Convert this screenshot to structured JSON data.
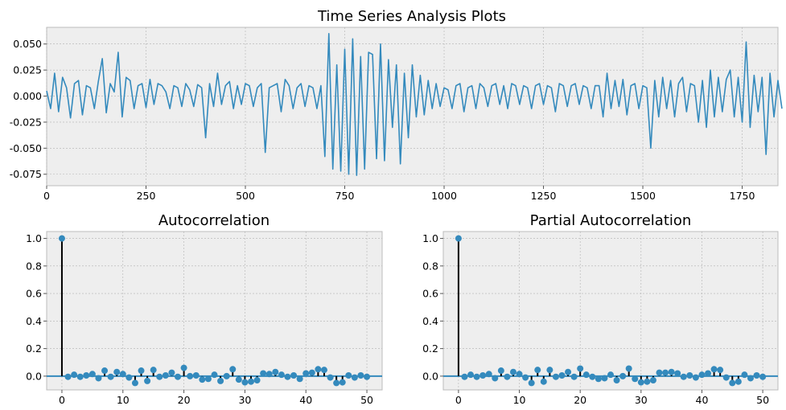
{
  "chart_data": [
    {
      "type": "line",
      "title": "Time Series Analysis Plots",
      "xlim": [
        0,
        1840
      ],
      "ylim": [
        -0.086,
        0.066
      ],
      "x_ticks": [
        0,
        250,
        500,
        750,
        1000,
        1250,
        1500,
        1750
      ],
      "y_ticks": [
        -0.075,
        -0.05,
        -0.025,
        0.0,
        0.025,
        0.05
      ],
      "x_tick_labels": [
        "0",
        "250",
        "500",
        "750",
        "1000",
        "1250",
        "1500",
        "1750"
      ],
      "y_tick_labels": [
        "-0.075",
        "-0.050",
        "-0.025",
        "0.000",
        "0.025",
        "0.050"
      ],
      "grid": true,
      "series": [
        {
          "color": "#348ABD",
          "x_step": 10,
          "values": [
            0.005,
            -0.012,
            0.022,
            -0.015,
            0.018,
            0.008,
            -0.021,
            0.012,
            0.015,
            -0.018,
            0.01,
            0.008,
            -0.012,
            0.014,
            0.036,
            -0.016,
            0.012,
            0.004,
            0.042,
            -0.02,
            0.018,
            0.015,
            -0.012,
            0.01,
            0.012,
            -0.011,
            0.016,
            -0.008,
            0.012,
            0.01,
            0.004,
            -0.012,
            0.01,
            0.008,
            -0.01,
            0.012,
            0.006,
            -0.01,
            0.011,
            0.008,
            -0.04,
            0.012,
            -0.01,
            0.022,
            -0.008,
            0.01,
            0.014,
            -0.012,
            0.01,
            -0.008,
            0.012,
            0.01,
            -0.01,
            0.008,
            0.012,
            -0.054,
            0.008,
            0.01,
            0.012,
            -0.015,
            0.016,
            0.01,
            -0.012,
            0.008,
            0.012,
            -0.01,
            0.01,
            0.008,
            -0.012,
            0.01,
            -0.058,
            0.06,
            -0.07,
            0.03,
            -0.072,
            0.045,
            -0.075,
            0.055,
            -0.076,
            0.038,
            -0.07,
            0.042,
            0.04,
            -0.06,
            0.05,
            -0.062,
            0.035,
            -0.03,
            0.03,
            -0.065,
            0.022,
            -0.04,
            0.03,
            -0.02,
            0.02,
            -0.018,
            0.015,
            -0.012,
            0.012,
            -0.01,
            0.008,
            0.006,
            -0.012,
            0.01,
            0.012,
            -0.015,
            0.008,
            0.01,
            -0.012,
            0.012,
            0.008,
            -0.01,
            0.01,
            0.012,
            -0.008,
            0.01,
            -0.012,
            0.012,
            0.01,
            -0.008,
            0.01,
            0.008,
            -0.012,
            0.01,
            0.012,
            -0.008,
            0.01,
            0.008,
            -0.015,
            0.012,
            0.01,
            -0.01,
            0.01,
            0.012,
            -0.008,
            0.01,
            0.008,
            -0.012,
            0.01,
            0.01,
            -0.02,
            0.022,
            -0.012,
            0.015,
            -0.01,
            0.016,
            -0.018,
            0.01,
            0.012,
            -0.012,
            0.01,
            0.008,
            -0.05,
            0.015,
            -0.02,
            0.018,
            -0.012,
            0.015,
            -0.02,
            0.012,
            0.018,
            -0.015,
            0.012,
            0.01,
            -0.025,
            0.015,
            -0.03,
            0.025,
            -0.02,
            0.018,
            -0.015,
            0.016,
            0.025,
            -0.02,
            0.018,
            -0.025,
            0.052,
            -0.03,
            0.02,
            -0.015,
            0.018,
            -0.056,
            0.022,
            -0.02,
            0.015,
            -0.012
          ]
        }
      ]
    },
    {
      "type": "stem",
      "title": "Autocorrelation",
      "xlim": [
        -2.5,
        52.5
      ],
      "ylim": [
        -0.1,
        1.05
      ],
      "x_ticks": [
        0,
        10,
        20,
        30,
        40,
        50
      ],
      "y_ticks": [
        0.0,
        0.2,
        0.4,
        0.6,
        0.8,
        1.0
      ],
      "x_tick_labels": [
        "0",
        "10",
        "20",
        "30",
        "40",
        "50"
      ],
      "y_tick_labels": [
        "0.0",
        "0.2",
        "0.4",
        "0.6",
        "0.8",
        "1.0"
      ],
      "grid": true,
      "x": [
        0,
        1,
        2,
        3,
        4,
        5,
        6,
        7,
        8,
        9,
        10,
        11,
        12,
        13,
        14,
        15,
        16,
        17,
        18,
        19,
        20,
        21,
        22,
        23,
        24,
        25,
        26,
        27,
        28,
        29,
        30,
        31,
        32,
        33,
        34,
        35,
        36,
        37,
        38,
        39,
        40,
        41,
        42,
        43,
        44,
        45,
        46,
        47,
        48,
        49,
        50
      ],
      "values": [
        1.0,
        -0.005,
        0.01,
        -0.005,
        0.005,
        0.015,
        -0.015,
        0.04,
        -0.005,
        0.03,
        0.015,
        -0.01,
        -0.05,
        0.04,
        -0.035,
        0.045,
        -0.005,
        0.005,
        0.025,
        -0.005,
        0.06,
        0.0,
        0.005,
        -0.025,
        -0.02,
        0.01,
        -0.035,
        0.0,
        0.05,
        -0.025,
        -0.045,
        -0.04,
        -0.03,
        0.02,
        0.015,
        0.03,
        0.01,
        -0.005,
        0.005,
        -0.02,
        0.02,
        0.025,
        0.05,
        0.045,
        -0.01,
        -0.05,
        -0.045,
        0.005,
        -0.01,
        0.005,
        -0.005
      ],
      "color": "#348ABD"
    },
    {
      "type": "stem",
      "title": "Partial Autocorrelation",
      "xlim": [
        -2.5,
        52.5
      ],
      "ylim": [
        -0.1,
        1.05
      ],
      "x_ticks": [
        0,
        10,
        20,
        30,
        40,
        50
      ],
      "y_ticks": [
        0.0,
        0.2,
        0.4,
        0.6,
        0.8,
        1.0
      ],
      "x_tick_labels": [
        "0",
        "10",
        "20",
        "30",
        "40",
        "50"
      ],
      "y_tick_labels": [
        "0.0",
        "0.2",
        "0.4",
        "0.6",
        "0.8",
        "1.0"
      ],
      "grid": true,
      "x": [
        0,
        1,
        2,
        3,
        4,
        5,
        6,
        7,
        8,
        9,
        10,
        11,
        12,
        13,
        14,
        15,
        16,
        17,
        18,
        19,
        20,
        21,
        22,
        23,
        24,
        25,
        26,
        27,
        28,
        29,
        30,
        31,
        32,
        33,
        34,
        35,
        36,
        37,
        38,
        39,
        40,
        41,
        42,
        43,
        44,
        45,
        46,
        47,
        48,
        49,
        50
      ],
      "values": [
        1.0,
        -0.005,
        0.01,
        -0.005,
        0.005,
        0.015,
        -0.015,
        0.04,
        -0.005,
        0.03,
        0.015,
        -0.01,
        -0.05,
        0.045,
        -0.04,
        0.045,
        -0.005,
        0.005,
        0.03,
        -0.005,
        0.055,
        0.01,
        -0.005,
        -0.02,
        -0.015,
        0.01,
        -0.03,
        0.0,
        0.055,
        -0.02,
        -0.045,
        -0.04,
        -0.03,
        0.025,
        0.025,
        0.03,
        0.02,
        -0.005,
        0.005,
        -0.01,
        0.01,
        0.02,
        0.05,
        0.045,
        -0.01,
        -0.05,
        -0.04,
        0.01,
        -0.015,
        0.005,
        -0.005
      ],
      "color": "#348ABD"
    }
  ]
}
